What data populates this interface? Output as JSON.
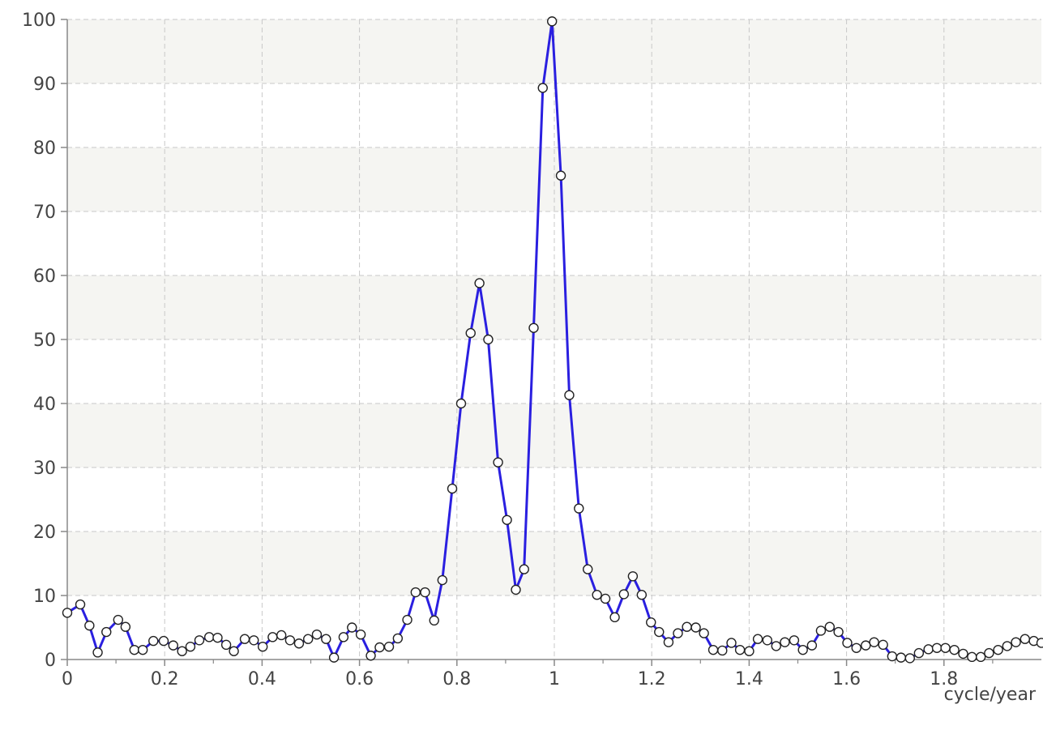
{
  "chart_data": {
    "type": "line",
    "title": "",
    "xlabel": "cycle/year",
    "ylabel": "",
    "xlim": [
      0,
      2.0
    ],
    "ylim": [
      0,
      100
    ],
    "x_ticks": [
      "0",
      "0.2",
      "0.4",
      "0.6",
      "0.8",
      "1",
      "1.2",
      "1.4",
      "1.6",
      "1.8"
    ],
    "y_ticks": [
      "0",
      "10",
      "20",
      "30",
      "40",
      "50",
      "60",
      "70",
      "80",
      "90",
      "100"
    ],
    "grid": true,
    "band_colors": [
      "#f5f5f2",
      "#ffffff"
    ],
    "series": [
      {
        "color": "#2a1fe0",
        "marker_fill": "#ffffff",
        "marker_stroke": "#222222",
        "x": [
          0.0,
          0.0267,
          0.0455,
          0.0625,
          0.0803,
          0.1045,
          0.1196,
          0.1377,
          0.155,
          0.1768,
          0.198,
          0.2176,
          0.2357,
          0.2528,
          0.2712,
          0.2914,
          0.3086,
          0.3263,
          0.3421,
          0.3644,
          0.3831,
          0.4013,
          0.4216,
          0.4396,
          0.4574,
          0.4758,
          0.4945,
          0.5124,
          0.5313,
          0.5476,
          0.5672,
          0.5845,
          0.6025,
          0.6232,
          0.6413,
          0.6606,
          0.6786,
          0.6981,
          0.7152,
          0.7346,
          0.7533,
          0.7701,
          0.7904,
          0.8086,
          0.8282,
          0.8463,
          0.8643,
          0.8845,
          0.9028,
          0.921,
          0.938,
          0.9576,
          0.9763,
          0.9953,
          1.0134,
          1.0307,
          1.0504,
          1.0686,
          1.0876,
          1.1049,
          1.1241,
          1.1428,
          1.1612,
          1.1794,
          1.1984,
          1.2151,
          1.2345,
          1.2537,
          1.2722,
          1.2905,
          1.3072,
          1.3262,
          1.3449,
          1.3636,
          1.3812,
          1.4001,
          1.4178,
          1.4373,
          1.4555,
          1.4733,
          1.4924,
          1.5103,
          1.5289,
          1.5473,
          1.5654,
          1.5834,
          1.6015,
          1.6202,
          1.6394,
          1.6566,
          1.675,
          1.6936,
          1.7118,
          1.7301,
          1.7485,
          1.7681,
          1.7855,
          1.803,
          1.8213,
          1.8394,
          1.8575,
          1.8755,
          1.8925,
          1.9112,
          1.9298,
          1.9477,
          1.9664,
          1.9844,
          2.0
        ],
        "y": [
          7.3,
          8.6,
          5.3,
          1.1,
          4.3,
          6.2,
          5.1,
          1.5,
          1.5,
          2.9,
          2.9,
          2.2,
          1.3,
          2.0,
          3.0,
          3.5,
          3.4,
          2.3,
          1.3,
          3.2,
          3.0,
          2.0,
          3.5,
          3.8,
          3.0,
          2.5,
          3.2,
          3.9,
          3.2,
          0.3,
          3.5,
          5.0,
          3.9,
          0.6,
          1.9,
          2.0,
          3.3,
          6.2,
          10.5,
          10.5,
          6.1,
          12.4,
          26.7,
          40.0,
          51.0,
          58.8,
          50.0,
          30.8,
          21.8,
          10.9,
          14.1,
          51.8,
          89.3,
          99.7,
          75.6,
          41.3,
          23.6,
          14.1,
          10.1,
          9.5,
          6.6,
          10.2,
          13.0,
          10.1,
          5.8,
          4.3,
          2.7,
          4.1,
          5.1,
          5.0,
          4.1,
          1.5,
          1.4,
          2.6,
          1.5,
          1.3,
          3.2,
          3.0,
          2.1,
          2.7,
          3.0,
          1.5,
          2.2,
          4.5,
          5.1,
          4.3,
          2.6,
          1.8,
          2.2,
          2.7,
          2.3,
          0.5,
          0.3,
          0.2,
          1.0,
          1.6,
          1.8,
          1.8,
          1.5,
          0.9,
          0.4,
          0.4,
          1.0,
          1.5,
          2.1,
          2.7,
          3.2,
          2.9,
          2.6
        ]
      }
    ]
  }
}
